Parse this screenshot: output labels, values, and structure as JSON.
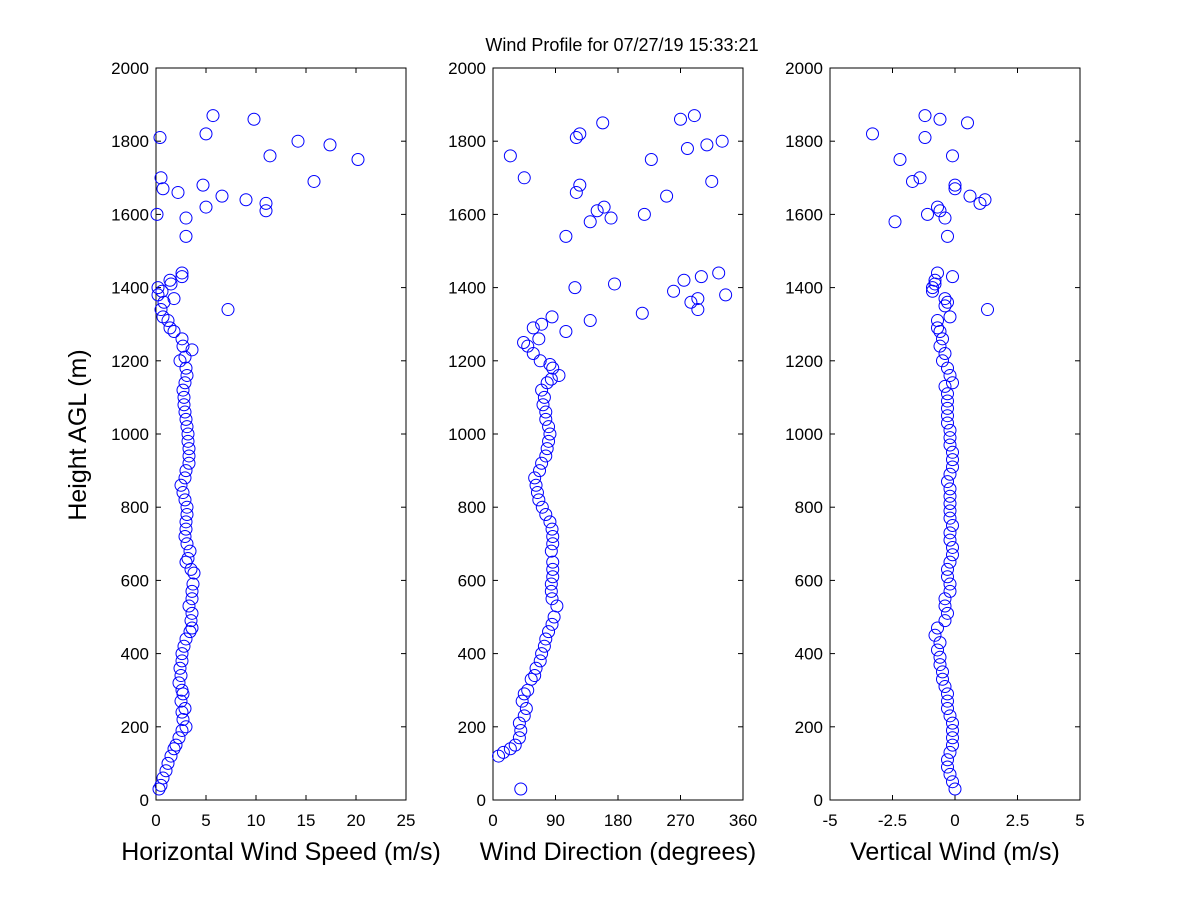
{
  "chart_data": {
    "type": "scatter",
    "title": "Wind Profile for  07/27/19 15:33:21",
    "ylabel": "Height AGL (m)",
    "ylim": [
      0,
      2000
    ],
    "yticks": [
      0,
      200,
      400,
      600,
      800,
      1000,
      1200,
      1400,
      1600,
      1800,
      2000
    ],
    "grid": false,
    "marker_color": "#0000ff",
    "panels": [
      {
        "id": "speed",
        "xlabel": "Horizontal Wind Speed (m/s)",
        "xlim": [
          0,
          25
        ],
        "xticks": [
          0,
          5,
          10,
          15,
          20,
          25
        ],
        "xtick_labels": [
          "0",
          "5",
          "10",
          "15",
          "20",
          "25"
        ],
        "ytick_labels": [
          "0",
          "200",
          "400",
          "600",
          "800",
          "1000",
          "1200",
          "1400",
          "1600",
          "1800",
          "2000"
        ],
        "points": [
          [
            0.3,
            30
          ],
          [
            0.5,
            40
          ],
          [
            0.7,
            60
          ],
          [
            1.0,
            80
          ],
          [
            1.2,
            100
          ],
          [
            1.5,
            120
          ],
          [
            1.8,
            140
          ],
          [
            2.0,
            150
          ],
          [
            2.3,
            170
          ],
          [
            2.6,
            190
          ],
          [
            3.0,
            200
          ],
          [
            2.7,
            220
          ],
          [
            2.6,
            240
          ],
          [
            2.9,
            250
          ],
          [
            2.5,
            270
          ],
          [
            2.7,
            290
          ],
          [
            2.6,
            300
          ],
          [
            2.3,
            320
          ],
          [
            2.5,
            340
          ],
          [
            2.4,
            360
          ],
          [
            2.6,
            380
          ],
          [
            2.6,
            400
          ],
          [
            2.8,
            420
          ],
          [
            3.0,
            440
          ],
          [
            3.4,
            460
          ],
          [
            3.6,
            470
          ],
          [
            3.5,
            490
          ],
          [
            3.6,
            510
          ],
          [
            3.3,
            530
          ],
          [
            3.6,
            550
          ],
          [
            3.6,
            570
          ],
          [
            3.7,
            590
          ],
          [
            3.8,
            620
          ],
          [
            3.5,
            630
          ],
          [
            3.0,
            650
          ],
          [
            3.2,
            660
          ],
          [
            3.4,
            680
          ],
          [
            3.1,
            700
          ],
          [
            2.9,
            720
          ],
          [
            3.0,
            740
          ],
          [
            3.0,
            760
          ],
          [
            3.1,
            780
          ],
          [
            3.1,
            800
          ],
          [
            2.9,
            820
          ],
          [
            2.7,
            840
          ],
          [
            2.5,
            860
          ],
          [
            2.9,
            880
          ],
          [
            3.0,
            900
          ],
          [
            3.3,
            920
          ],
          [
            3.3,
            940
          ],
          [
            3.3,
            960
          ],
          [
            3.2,
            980
          ],
          [
            3.2,
            1000
          ],
          [
            3.1,
            1020
          ],
          [
            3.0,
            1040
          ],
          [
            2.9,
            1060
          ],
          [
            2.8,
            1080
          ],
          [
            2.8,
            1100
          ],
          [
            2.7,
            1120
          ],
          [
            2.9,
            1140
          ],
          [
            3.1,
            1160
          ],
          [
            3.0,
            1180
          ],
          [
            2.4,
            1200
          ],
          [
            2.9,
            1210
          ],
          [
            3.6,
            1230
          ],
          [
            2.7,
            1240
          ],
          [
            2.6,
            1260
          ],
          [
            1.8,
            1280
          ],
          [
            1.4,
            1290
          ],
          [
            1.2,
            1310
          ],
          [
            0.7,
            1320
          ],
          [
            0.5,
            1340
          ],
          [
            7.2,
            1340
          ],
          [
            0.8,
            1360
          ],
          [
            1.8,
            1370
          ],
          [
            0.2,
            1380
          ],
          [
            0.6,
            1390
          ],
          [
            0.2,
            1400
          ],
          [
            1.5,
            1410
          ],
          [
            1.4,
            1420
          ],
          [
            2.6,
            1430
          ],
          [
            2.6,
            1440
          ],
          [
            3.0,
            1540
          ],
          [
            3.0,
            1590
          ],
          [
            0.1,
            1600
          ],
          [
            5.0,
            1620
          ],
          [
            11.0,
            1610
          ],
          [
            11.0,
            1630
          ],
          [
            9.0,
            1640
          ],
          [
            6.6,
            1650
          ],
          [
            2.2,
            1660
          ],
          [
            0.7,
            1670
          ],
          [
            4.7,
            1680
          ],
          [
            15.8,
            1690
          ],
          [
            0.5,
            1700
          ],
          [
            20.2,
            1750
          ],
          [
            11.4,
            1760
          ],
          [
            17.4,
            1790
          ],
          [
            14.2,
            1800
          ],
          [
            0.4,
            1810
          ],
          [
            5.0,
            1820
          ],
          [
            9.8,
            1860
          ],
          [
            5.7,
            1870
          ]
        ]
      },
      {
        "id": "direction",
        "xlabel": "Wind Direction (degrees)",
        "xlim": [
          0,
          360
        ],
        "xticks": [
          0,
          90,
          180,
          270,
          360
        ],
        "xtick_labels": [
          "0",
          "90",
          "180",
          "270",
          "360"
        ],
        "ytick_labels": [
          "0",
          "200",
          "400",
          "600",
          "800",
          "1000",
          "1200",
          "1400",
          "1600",
          "1800",
          "2000"
        ],
        "points": [
          [
            40,
            30
          ],
          [
            8,
            120
          ],
          [
            15,
            130
          ],
          [
            25,
            140
          ],
          [
            32,
            150
          ],
          [
            38,
            170
          ],
          [
            40,
            190
          ],
          [
            38,
            210
          ],
          [
            45,
            230
          ],
          [
            48,
            250
          ],
          [
            42,
            270
          ],
          [
            45,
            290
          ],
          [
            50,
            300
          ],
          [
            55,
            330
          ],
          [
            60,
            340
          ],
          [
            62,
            360
          ],
          [
            68,
            380
          ],
          [
            70,
            400
          ],
          [
            74,
            420
          ],
          [
            76,
            440
          ],
          [
            80,
            460
          ],
          [
            85,
            480
          ],
          [
            88,
            500
          ],
          [
            92,
            530
          ],
          [
            85,
            550
          ],
          [
            84,
            570
          ],
          [
            84,
            590
          ],
          [
            86,
            610
          ],
          [
            86,
            630
          ],
          [
            86,
            650
          ],
          [
            84,
            680
          ],
          [
            86,
            700
          ],
          [
            86,
            720
          ],
          [
            85,
            740
          ],
          [
            82,
            760
          ],
          [
            76,
            780
          ],
          [
            71,
            800
          ],
          [
            66,
            820
          ],
          [
            64,
            840
          ],
          [
            62,
            860
          ],
          [
            60,
            880
          ],
          [
            67,
            900
          ],
          [
            70,
            920
          ],
          [
            76,
            940
          ],
          [
            78,
            960
          ],
          [
            80,
            980
          ],
          [
            82,
            1000
          ],
          [
            80,
            1020
          ],
          [
            76,
            1040
          ],
          [
            76,
            1060
          ],
          [
            72,
            1080
          ],
          [
            74,
            1100
          ],
          [
            70,
            1120
          ],
          [
            78,
            1140
          ],
          [
            84,
            1150
          ],
          [
            95,
            1160
          ],
          [
            86,
            1180
          ],
          [
            82,
            1190
          ],
          [
            68,
            1200
          ],
          [
            58,
            1220
          ],
          [
            50,
            1240
          ],
          [
            44,
            1250
          ],
          [
            66,
            1260
          ],
          [
            105,
            1280
          ],
          [
            58,
            1290
          ],
          [
            70,
            1300
          ],
          [
            85,
            1320
          ],
          [
            140,
            1310
          ],
          [
            215,
            1330
          ],
          [
            295,
            1340
          ],
          [
            285,
            1360
          ],
          [
            295,
            1370
          ],
          [
            335,
            1380
          ],
          [
            118,
            1400
          ],
          [
            260,
            1390
          ],
          [
            175,
            1410
          ],
          [
            275,
            1420
          ],
          [
            300,
            1430
          ],
          [
            325,
            1440
          ],
          [
            105,
            1540
          ],
          [
            140,
            1580
          ],
          [
            170,
            1590
          ],
          [
            218,
            1600
          ],
          [
            150,
            1610
          ],
          [
            160,
            1620
          ],
          [
            250,
            1650
          ],
          [
            120,
            1660
          ],
          [
            125,
            1680
          ],
          [
            315,
            1690
          ],
          [
            45,
            1700
          ],
          [
            25,
            1760
          ],
          [
            228,
            1750
          ],
          [
            280,
            1780
          ],
          [
            308,
            1790
          ],
          [
            330,
            1800
          ],
          [
            120,
            1810
          ],
          [
            125,
            1820
          ],
          [
            158,
            1850
          ],
          [
            270,
            1860
          ],
          [
            290,
            1870
          ]
        ]
      },
      {
        "id": "vertical",
        "xlabel": "Vertical Wind (m/s)",
        "xlim": [
          -5,
          5
        ],
        "xticks": [
          -5,
          -2.5,
          0,
          2.5,
          5
        ],
        "xtick_labels": [
          "-5",
          "-2.5",
          "0",
          "2.5",
          "5"
        ],
        "ytick_labels": [
          "0",
          "200",
          "400",
          "600",
          "800",
          "1000",
          "1200",
          "1400",
          "1600",
          "1800",
          "2000"
        ],
        "points": [
          [
            0.0,
            30
          ],
          [
            -0.1,
            50
          ],
          [
            -0.2,
            70
          ],
          [
            -0.3,
            90
          ],
          [
            -0.3,
            110
          ],
          [
            -0.2,
            130
          ],
          [
            -0.1,
            150
          ],
          [
            -0.1,
            170
          ],
          [
            -0.1,
            190
          ],
          [
            -0.1,
            210
          ],
          [
            -0.2,
            230
          ],
          [
            -0.3,
            250
          ],
          [
            -0.3,
            270
          ],
          [
            -0.3,
            290
          ],
          [
            -0.4,
            310
          ],
          [
            -0.5,
            330
          ],
          [
            -0.5,
            350
          ],
          [
            -0.6,
            370
          ],
          [
            -0.6,
            390
          ],
          [
            -0.7,
            410
          ],
          [
            -0.6,
            430
          ],
          [
            -0.8,
            450
          ],
          [
            -0.7,
            470
          ],
          [
            -0.4,
            490
          ],
          [
            -0.3,
            510
          ],
          [
            -0.4,
            530
          ],
          [
            -0.4,
            550
          ],
          [
            -0.2,
            570
          ],
          [
            -0.2,
            590
          ],
          [
            -0.3,
            610
          ],
          [
            -0.3,
            630
          ],
          [
            -0.2,
            650
          ],
          [
            -0.1,
            670
          ],
          [
            -0.1,
            690
          ],
          [
            -0.2,
            710
          ],
          [
            -0.2,
            730
          ],
          [
            -0.1,
            750
          ],
          [
            -0.2,
            770
          ],
          [
            -0.2,
            790
          ],
          [
            -0.2,
            810
          ],
          [
            -0.2,
            830
          ],
          [
            -0.2,
            850
          ],
          [
            -0.3,
            870
          ],
          [
            -0.2,
            890
          ],
          [
            -0.1,
            910
          ],
          [
            -0.1,
            930
          ],
          [
            -0.1,
            950
          ],
          [
            -0.2,
            970
          ],
          [
            -0.2,
            990
          ],
          [
            -0.2,
            1010
          ],
          [
            -0.3,
            1030
          ],
          [
            -0.3,
            1050
          ],
          [
            -0.3,
            1070
          ],
          [
            -0.3,
            1090
          ],
          [
            -0.3,
            1110
          ],
          [
            -0.4,
            1130
          ],
          [
            -0.1,
            1140
          ],
          [
            -0.2,
            1160
          ],
          [
            -0.3,
            1180
          ],
          [
            -0.5,
            1200
          ],
          [
            -0.4,
            1220
          ],
          [
            -0.6,
            1240
          ],
          [
            -0.5,
            1260
          ],
          [
            -0.6,
            1280
          ],
          [
            -0.7,
            1290
          ],
          [
            -0.7,
            1310
          ],
          [
            -0.2,
            1320
          ],
          [
            1.3,
            1340
          ],
          [
            -0.4,
            1350
          ],
          [
            -0.3,
            1360
          ],
          [
            -0.4,
            1370
          ],
          [
            -0.9,
            1390
          ],
          [
            -0.9,
            1400
          ],
          [
            -0.8,
            1410
          ],
          [
            -0.8,
            1420
          ],
          [
            -0.1,
            1430
          ],
          [
            -0.7,
            1440
          ],
          [
            -0.3,
            1540
          ],
          [
            -2.4,
            1580
          ],
          [
            -0.4,
            1590
          ],
          [
            -1.1,
            1600
          ],
          [
            -0.6,
            1610
          ],
          [
            -0.7,
            1620
          ],
          [
            1.0,
            1630
          ],
          [
            1.2,
            1640
          ],
          [
            0.6,
            1650
          ],
          [
            0.0,
            1670
          ],
          [
            0.0,
            1680
          ],
          [
            -1.7,
            1690
          ],
          [
            -1.4,
            1700
          ],
          [
            -2.2,
            1750
          ],
          [
            -0.1,
            1760
          ],
          [
            -1.2,
            1810
          ],
          [
            -3.3,
            1820
          ],
          [
            0.5,
            1850
          ],
          [
            -0.6,
            1860
          ],
          [
            -1.2,
            1870
          ]
        ]
      }
    ]
  }
}
